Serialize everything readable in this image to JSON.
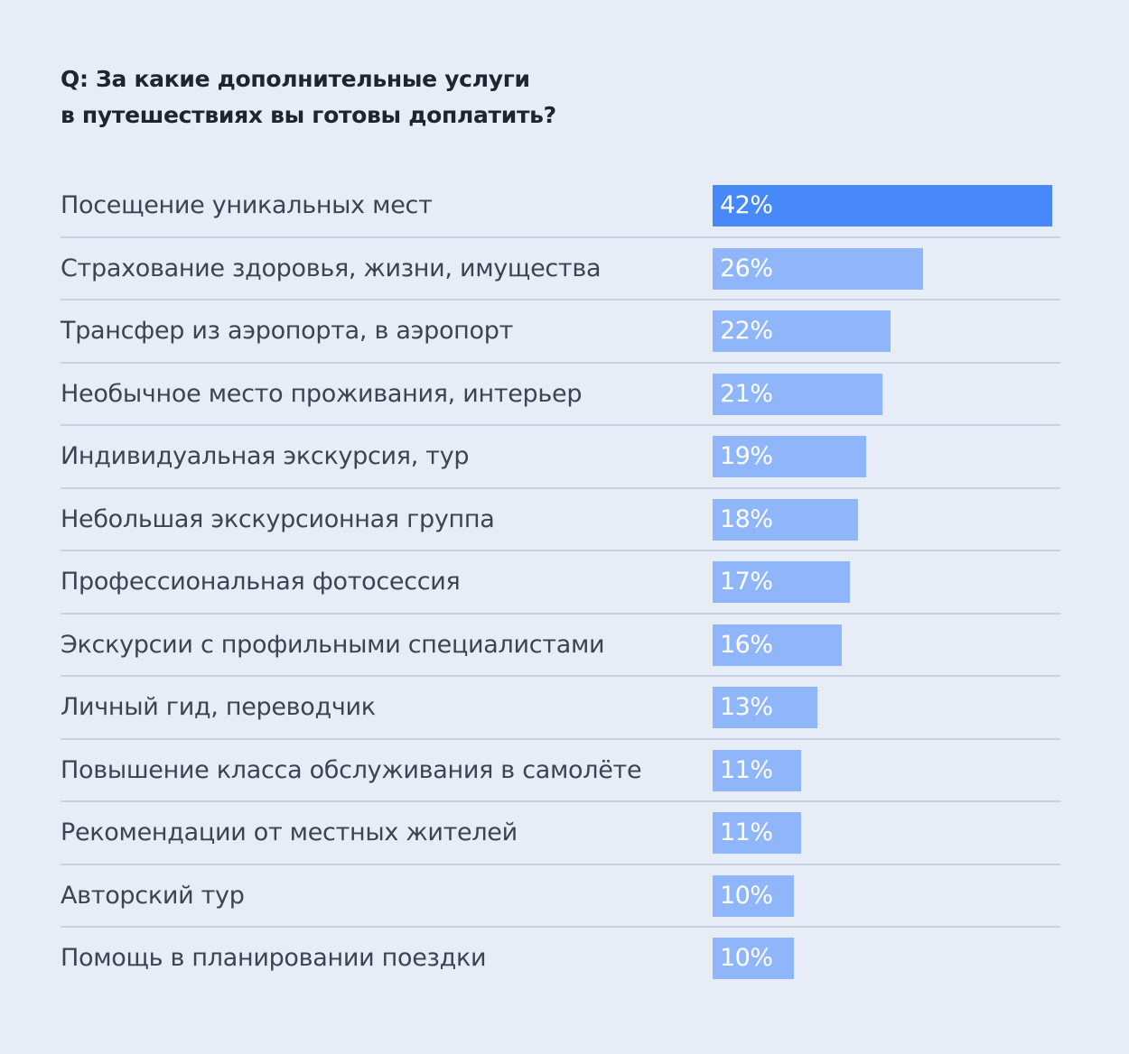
{
  "title": {
    "line1": "Q: За какие дополнительные услуги",
    "line2": "в путешествиях вы готовы доплатить?"
  },
  "colors": {
    "highlight": "#4889fa",
    "bar": "#8fb6fa",
    "background": "#e6edf7"
  },
  "rows": [
    {
      "label": "Посещение уникальных мест",
      "value": 42,
      "display": "42%"
    },
    {
      "label": "Страхование здоровья, жизни, имущества",
      "value": 26,
      "display": "26%"
    },
    {
      "label": "Трансфер из аэропорта, в аэропорт",
      "value": 22,
      "display": "22%"
    },
    {
      "label": "Необычное место проживания, интерьер",
      "value": 21,
      "display": "21%"
    },
    {
      "label": "Индивидуальная экскурсия, тур",
      "value": 19,
      "display": "19%"
    },
    {
      "label": "Небольшая экскурсионная группа",
      "value": 18,
      "display": "18%"
    },
    {
      "label": "Профессиональная фотосессия",
      "value": 17,
      "display": "17%"
    },
    {
      "label": "Экскурсии с профильными специалистами",
      "value": 16,
      "display": "16%"
    },
    {
      "label": "Личный гид, переводчик",
      "value": 13,
      "display": "13%"
    },
    {
      "label": "Повышение класса обслуживания в самолёте",
      "value": 11,
      "display": "11%"
    },
    {
      "label": "Рекомендации от местных жителей",
      "value": 11,
      "display": "11%"
    },
    {
      "label": "Авторский тур",
      "value": 10,
      "display": "10%"
    },
    {
      "label": "Помощь в планировании поездки",
      "value": 10,
      "display": "10%"
    }
  ],
  "chart_data": {
    "type": "bar",
    "orientation": "horizontal",
    "title": "Q: За какие дополнительные услуги в путешествиях вы готовы доплатить?",
    "categories": [
      "Посещение уникальных мест",
      "Страхование здоровья, жизни, имущества",
      "Трансфер из аэропорта, в аэропорт",
      "Необычное место проживания, интерьер",
      "Индивидуальная экскурсия, тур",
      "Небольшая экскурсионная группа",
      "Профессиональная фотосессия",
      "Экскурсии с профильными специалистами",
      "Личный гид, переводчик",
      "Повышение класса обслуживания в самолёте",
      "Рекомендации от местных жителей",
      "Авторский тур",
      "Помощь в планировании поездки"
    ],
    "values": [
      42,
      26,
      22,
      21,
      19,
      18,
      17,
      16,
      13,
      11,
      11,
      10,
      10
    ],
    "unit": "%",
    "xlabel": "",
    "ylabel": "",
    "grid": false,
    "legend": "none",
    "data_labels": "inside-left"
  }
}
